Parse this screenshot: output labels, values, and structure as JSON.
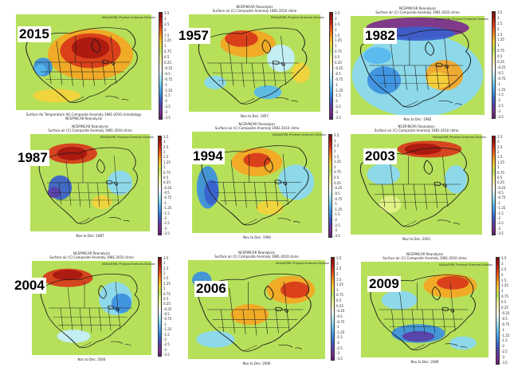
{
  "colorbar_colors": [
    "#5b1a6b",
    "#7b2d8e",
    "#5a3fa6",
    "#3a5fcc",
    "#3b8fe0",
    "#57b8ef",
    "#8ad8f5",
    "#c4efff",
    "#ffffff",
    "#fff4b0",
    "#e6f28a",
    "#b6e05a",
    "#f5d23b",
    "#f6a623",
    "#ef6b1c",
    "#d8371a",
    "#a8170f",
    "#7a0c0c"
  ],
  "colorbar_ticks": [
    "3.5",
    "3",
    "2.5",
    "2",
    "1.5",
    "1.25",
    "1",
    "0.75",
    "0.5",
    "0.25",
    "-0.25",
    "-0.5",
    "-0.75",
    "-1",
    "-1.25",
    "-1.5",
    "-2",
    "-2.5",
    "-3",
    "-3.5"
  ],
  "header_line1": "NCEP/NCAR Reanalysis",
  "credit": "NOAA/ESRL Physical Sciences Division",
  "panels": [
    {
      "year": "2015",
      "header1": "",
      "header2": "",
      "caption": "Surface Air Temperature (K) Composite Anomaly 1981-2010 climatology",
      "caption2": "NCEP/NCAR Reanalysis"
    },
    {
      "year": "1957",
      "header1": "NCEP/NCAR Reanalysis",
      "header2": "Surface air (C) Composite Anomaly 1981-2010 climo",
      "caption": "Nov to Dec: 1957",
      "caption2": ""
    },
    {
      "year": "1982",
      "header1": "NCEP/NCAR Reanalysis",
      "header2": "Surface air (C) Composite Anomaly 1981-2010 climo",
      "caption": "Nov to Dec: 1982",
      "caption2": ""
    },
    {
      "year": "1987",
      "header1": "NCEP/NCAR Reanalysis",
      "header2": "Surface air (C) Composite Anomaly 1981-2010 climo",
      "caption": "Nov to Dec: 1987",
      "caption2": ""
    },
    {
      "year": "1994",
      "header1": "NCEP/NCAR Reanalysis",
      "header2": "Surface air (C) Composite Anomaly 1981-2010 climo",
      "caption": "Nov to Dec: 1994",
      "caption2": ""
    },
    {
      "year": "2003",
      "header1": "NCEP/NCAR Reanalysis",
      "header2": "Surface air (C) Composite Anomaly 1981-2010 climo",
      "caption": "Nov to Dec: 2003",
      "caption2": ""
    },
    {
      "year": "2004",
      "header1": "NCEP/NCAR Reanalysis",
      "header2": "Surface air (C) Composite Anomaly 1981-2010 climo",
      "caption": "Nov to Dec: 2004",
      "caption2": ""
    },
    {
      "year": "2006",
      "header1": "NCEP/NCAR Reanalysis",
      "header2": "Surface air (C) Composite Anomaly 1981-2010 climo",
      "caption": "Nov to Dec: 2006",
      "caption2": ""
    },
    {
      "year": "2009",
      "header1": "NCEP/NCAR Reanalysis",
      "header2": "Surface air (C) Composite Anomaly 1981-2010 climo",
      "caption": "Nov to Dec: 2009",
      "caption2": ""
    }
  ]
}
